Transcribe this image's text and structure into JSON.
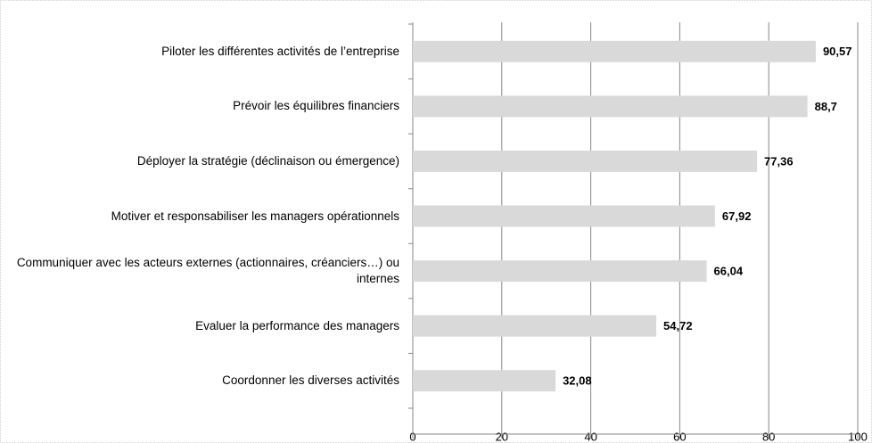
{
  "chart_data": {
    "type": "bar",
    "orientation": "horizontal",
    "categories": [
      "Piloter les différentes activités de l’entreprise",
      "Prévoir les équilibres financiers",
      "Déployer la stratégie (déclinaison ou émergence)",
      "Motiver et responsabiliser les managers opérationnels",
      "Communiquer avec les acteurs externes (actionnaires, créanciers…) ou internes",
      "Evaluer la performance des managers",
      "Coordonner les diverses activités"
    ],
    "values": [
      90.57,
      88.7,
      77.36,
      67.92,
      66.04,
      54.72,
      32.08
    ],
    "value_labels": [
      "90,57",
      "88,7",
      "77,36",
      "67,92",
      "66,04",
      "54,72",
      "32,08"
    ],
    "color": "#d9d9d9",
    "xlim": [
      0,
      100
    ],
    "xticks": [
      0,
      20,
      40,
      60,
      80,
      100
    ],
    "grid": true
  }
}
